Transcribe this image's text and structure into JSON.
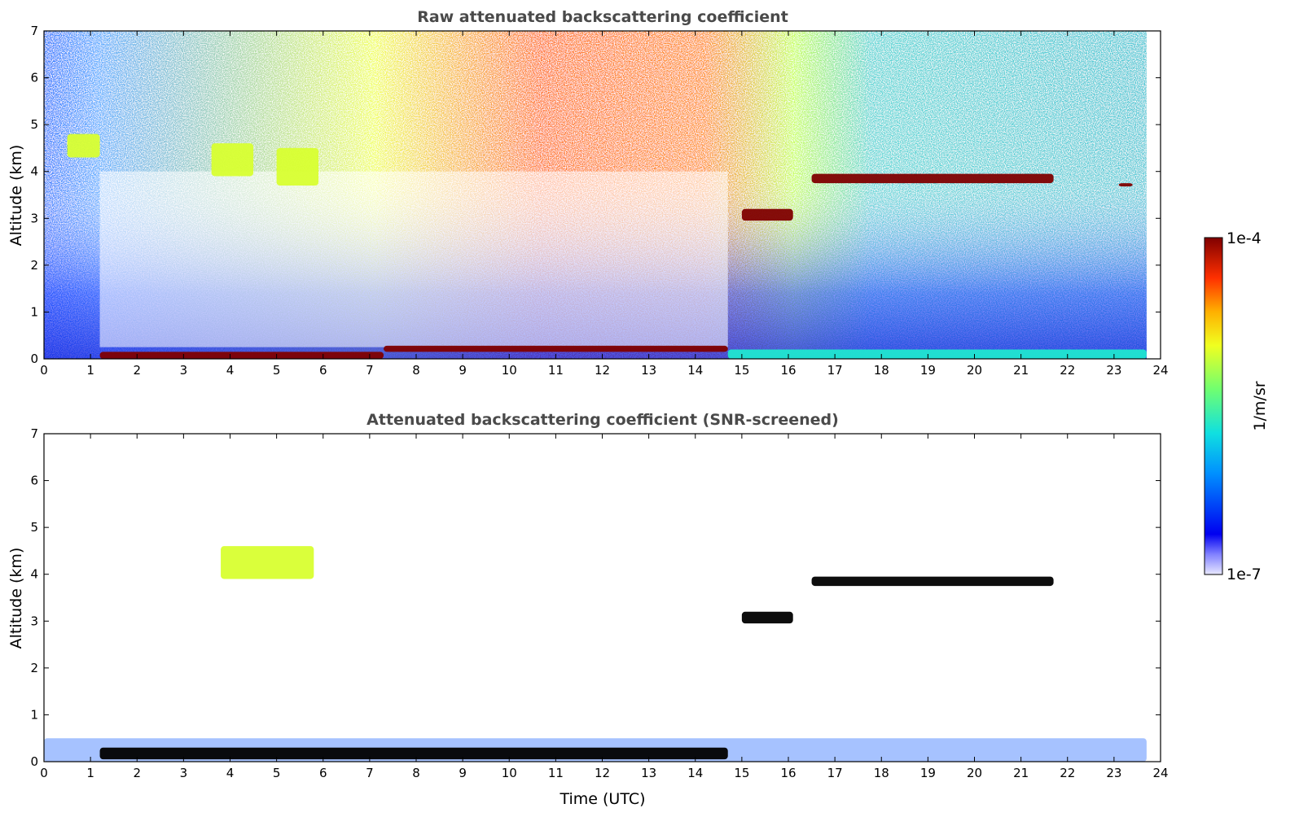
{
  "colors": {
    "jet": [
      "#0000e0",
      "#0050ff",
      "#00b4ff",
      "#20e6d0",
      "#80ff80",
      "#d8ff30",
      "#ffd000",
      "#ff7000",
      "#e01000",
      "#800000"
    ],
    "background": "#ffffff",
    "title_color": "#4a4a4a"
  },
  "chart_data": [
    {
      "type": "heatmap",
      "title": "Raw attenuated backscattering coefficient",
      "xlabel": "",
      "ylabel": "Altitude (km)",
      "xlim": [
        0,
        24
      ],
      "ylim": [
        0,
        7
      ],
      "xticks": [
        "0",
        "1",
        "2",
        "3",
        "4",
        "5",
        "6",
        "7",
        "8",
        "9",
        "10",
        "11",
        "12",
        "13",
        "14",
        "15",
        "16",
        "17",
        "18",
        "19",
        "20",
        "21",
        "22",
        "23",
        "24"
      ],
      "yticks": [
        "0",
        "1",
        "2",
        "3",
        "4",
        "5",
        "6",
        "7"
      ],
      "data_end_hour": 23.7,
      "features": [
        {
          "name": "morning boundary layer (residual)",
          "time": [
            1.2,
            7.3
          ],
          "alt": [
            0.0,
            0.15
          ],
          "level": 0.95
        },
        {
          "name": "stratocumulus deck",
          "time": [
            7.3,
            14.7
          ],
          "alt": [
            0.15,
            0.28
          ],
          "level": 0.98
        },
        {
          "name": "afternoon mixed layer",
          "time": [
            14.7,
            23.7
          ],
          "alt": [
            0.0,
            0.2
          ],
          "level": 0.35
        },
        {
          "name": "altocumulus (3 km)",
          "time": [
            15.0,
            16.1
          ],
          "alt": [
            2.95,
            3.2
          ],
          "level": 0.95
        },
        {
          "name": "altocumulus (3.9 km)",
          "time": [
            16.5,
            21.7
          ],
          "alt": [
            3.75,
            3.95
          ],
          "level": 1.0
        },
        {
          "name": "isolated cloud",
          "time": [
            23.1,
            23.4
          ],
          "alt": [
            3.68,
            3.75
          ],
          "level": 0.95
        },
        {
          "name": "virga 1",
          "time": [
            0.5,
            1.2
          ],
          "alt": [
            4.3,
            4.8
          ],
          "level": 0.55
        },
        {
          "name": "virga 2",
          "time": [
            3.6,
            4.5
          ],
          "alt": [
            3.9,
            4.6
          ],
          "level": 0.6
        },
        {
          "name": "virga 3",
          "time": [
            5.0,
            5.9
          ],
          "alt": [
            3.7,
            4.5
          ],
          "level": 0.6
        }
      ]
    },
    {
      "type": "heatmap",
      "title": "Attenuated backscattering coefficient (SNR-screened)",
      "xlabel": "Time (UTC)",
      "ylabel": "Altitude (km)",
      "xlim": [
        0,
        24
      ],
      "ylim": [
        0,
        7
      ],
      "xticks": [
        "0",
        "1",
        "2",
        "3",
        "4",
        "5",
        "6",
        "7",
        "8",
        "9",
        "10",
        "11",
        "12",
        "13",
        "14",
        "15",
        "16",
        "17",
        "18",
        "19",
        "20",
        "21",
        "22",
        "23",
        "24"
      ],
      "yticks": [
        "0",
        "1",
        "2",
        "3",
        "4",
        "5",
        "6",
        "7"
      ],
      "features": [
        {
          "name": "boundary layer haze",
          "time": [
            0,
            23.7
          ],
          "alt": [
            0.0,
            0.5
          ],
          "level": 0.1
        },
        {
          "name": "cloud base band",
          "time": [
            1.2,
            14.7
          ],
          "alt": [
            0.05,
            0.3
          ],
          "level": 1.0
        },
        {
          "name": "altocumulus (3 km)",
          "time": [
            15.0,
            16.1
          ],
          "alt": [
            2.95,
            3.2
          ],
          "level": 1.0
        },
        {
          "name": "altocumulus (3.9 km)",
          "time": [
            16.5,
            21.7
          ],
          "alt": [
            3.75,
            3.95
          ],
          "level": 1.0
        },
        {
          "name": "virga green patches",
          "time": [
            3.8,
            5.8
          ],
          "alt": [
            3.9,
            4.6
          ],
          "level": 0.55
        }
      ]
    }
  ],
  "colorbar": {
    "label": "1/m/sr",
    "max_label": "1e-4",
    "min_label": "1e-7",
    "scale": "log"
  }
}
